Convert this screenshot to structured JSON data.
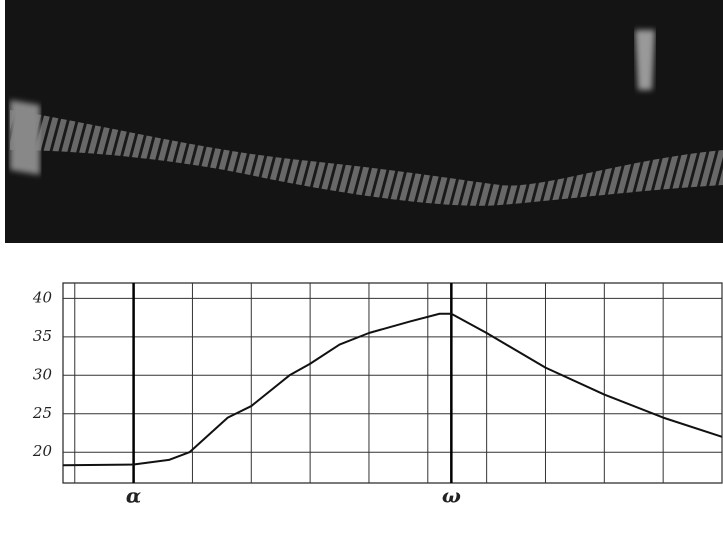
{
  "chart_data": {
    "type": "line",
    "x": [
      -0.2,
      1,
      1.6,
      1.95,
      2.6,
      3,
      3.65,
      4,
      4.5,
      5,
      5.7,
      6.2,
      6.4,
      7,
      8,
      9,
      10,
      11
    ],
    "series": [
      {
        "color": "#111111",
        "values": [
          18.3,
          18.4,
          19.0,
          20.0,
          24.5,
          26.0,
          30.0,
          31.5,
          34.0,
          35.5,
          37.0,
          38.0,
          38.0,
          35.5,
          31.0,
          27.5,
          24.5,
          22.0
        ]
      }
    ],
    "xlim": [
      -0.2,
      11
    ],
    "xticks": [
      {
        "value": 1,
        "label": "α"
      },
      {
        "value": 6.4,
        "label": "ω"
      }
    ],
    "ylim": [
      16,
      42
    ],
    "yticks": [
      20,
      25,
      30,
      35,
      40
    ],
    "grid": true
  }
}
